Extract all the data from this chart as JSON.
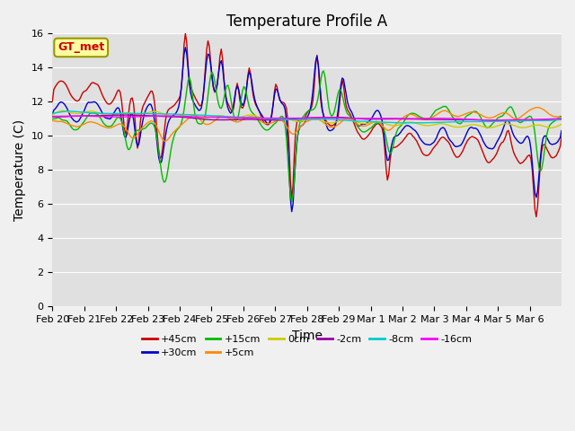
{
  "title": "Temperature Profile A",
  "xlabel": "Time",
  "ylabel": "Temperature (C)",
  "ylim": [
    0,
    16
  ],
  "yticks": [
    0,
    2,
    4,
    6,
    8,
    10,
    12,
    14,
    16
  ],
  "xtick_labels": [
    "Feb 20",
    "Feb 21",
    "Feb 22",
    "Feb 23",
    "Feb 24",
    "Feb 25",
    "Feb 26",
    "Feb 27",
    "Feb 28",
    "Feb 29",
    "Mar 1",
    "Mar 2",
    "Mar 3",
    "Mar 4",
    "Mar 5",
    "Mar 6"
  ],
  "series_labels": [
    "+45cm",
    "+30cm",
    "+15cm",
    "+5cm",
    "0cm",
    "-2cm",
    "-8cm",
    "-16cm"
  ],
  "series_colors": [
    "#cc0000",
    "#0000cc",
    "#00bb00",
    "#ff8800",
    "#cccc00",
    "#9900aa",
    "#00cccc",
    "#ff00ff"
  ],
  "annotation_text": "GT_met",
  "background_color": "#e0e0e0",
  "fig_background": "#f0f0f0",
  "title_fontsize": 12,
  "tick_fontsize": 8,
  "label_fontsize": 10
}
